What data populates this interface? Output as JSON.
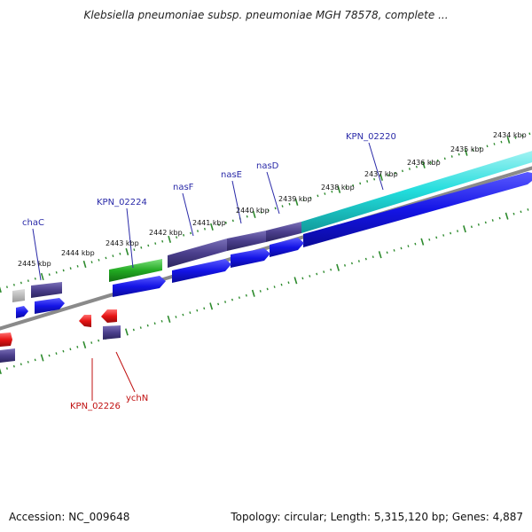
{
  "title": "Klebsiella pneumoniae subsp. pneumoniae MGH 78578, complete ...",
  "accession": "Accession: NC_009648",
  "summary": "Topology: circular; Length: 5,315,120 bp; Genes: 4,887",
  "colors": {
    "backbone": "#8a8a8a",
    "tick": "#2e8b2e",
    "gene_forward": "#1414e6",
    "gene_cds_other": "#4b3f8c",
    "gene_reverse": "#e61414",
    "gene_rna": "#22aa22",
    "gene_highlight": "#22dddd",
    "gene_unknown": "#b0b0b0",
    "label_forward": "#2a2aa8",
    "label_reverse": "#c01010"
  },
  "ticks": [
    "2445 kbp",
    "2444 kbp",
    "2443 kbp",
    "2442 kbp",
    "2441 kbp",
    "2440 kbp",
    "2439 kbp",
    "2438 kbp",
    "2437 kbp",
    "2436 kbp",
    "2435 kbp",
    "2434 kbp"
  ],
  "gene_labels_forward": [
    "chaC",
    "KPN_02224",
    "nasF",
    "nasE",
    "nasD",
    "KPN_02220"
  ],
  "gene_labels_reverse": [
    "KPN_02226",
    "ychN"
  ]
}
